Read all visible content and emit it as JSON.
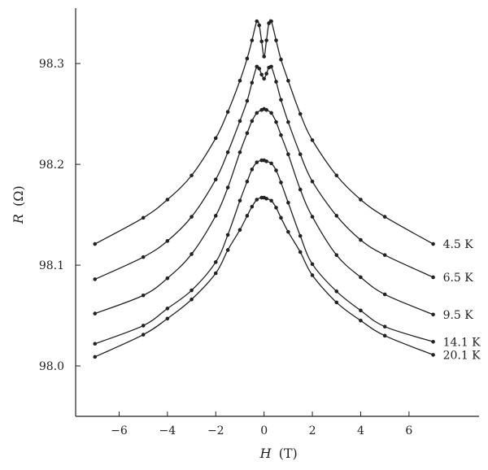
{
  "chart_data": {
    "type": "line",
    "xlabel_var": "H",
    "xlabel_unit": "(T)",
    "ylabel_var": "R",
    "ylabel_unit": "(Ω)",
    "xlim": [
      -7.8,
      8.9
    ],
    "ylim": [
      97.95,
      98.355
    ],
    "xticks": [
      -6,
      -4,
      -2,
      0,
      2,
      4,
      6
    ],
    "xtick_labels": [
      "−6",
      "−4",
      "−2",
      "0",
      "2",
      "4",
      "6"
    ],
    "yticks": [
      98.0,
      98.1,
      98.2,
      98.3
    ],
    "ytick_labels": [
      "98.0",
      "98.1",
      "98.2",
      "98.3"
    ],
    "grid": false,
    "legend": "none",
    "series": [
      {
        "name": "4.5 K",
        "x": [
          -7,
          -5,
          -4,
          -3,
          -2,
          -1.5,
          -1,
          -0.7,
          -0.5,
          -0.3,
          -0.2,
          -0.1,
          0,
          0.1,
          0.2,
          0.3,
          0.5,
          0.7,
          1,
          1.5,
          2,
          3,
          4,
          5,
          7
        ],
        "y": [
          98.121,
          98.147,
          98.165,
          98.189,
          98.226,
          98.252,
          98.283,
          98.305,
          98.323,
          98.342,
          98.338,
          98.322,
          98.307,
          98.323,
          98.34,
          98.342,
          98.323,
          98.304,
          98.283,
          98.25,
          98.224,
          98.189,
          98.165,
          98.148,
          98.121
        ]
      },
      {
        "name": "6.5 K",
        "x": [
          -7,
          -5,
          -4,
          -3,
          -2,
          -1.5,
          -1,
          -0.7,
          -0.5,
          -0.3,
          -0.2,
          -0.1,
          0,
          0.1,
          0.2,
          0.3,
          0.5,
          0.7,
          1,
          1.5,
          2,
          3,
          4,
          5,
          7
        ],
        "y": [
          98.086,
          98.108,
          98.124,
          98.148,
          98.185,
          98.212,
          98.243,
          98.263,
          98.281,
          98.297,
          98.295,
          98.289,
          98.285,
          98.29,
          98.296,
          98.297,
          98.282,
          98.264,
          98.242,
          98.21,
          98.183,
          98.149,
          98.125,
          98.11,
          98.088
        ]
      },
      {
        "name": "9.5 K",
        "x": [
          -7,
          -5,
          -4,
          -3,
          -2,
          -1.5,
          -1,
          -0.7,
          -0.5,
          -0.3,
          -0.1,
          0,
          0.1,
          0.3,
          0.5,
          0.7,
          1,
          1.5,
          2,
          3,
          4,
          5,
          7
        ],
        "y": [
          98.052,
          98.07,
          98.087,
          98.111,
          98.149,
          98.177,
          98.212,
          98.231,
          98.243,
          98.251,
          98.254,
          98.255,
          98.254,
          98.251,
          98.242,
          98.229,
          98.21,
          98.175,
          98.148,
          98.11,
          98.088,
          98.071,
          98.051
        ]
      },
      {
        "name": "14.1 K",
        "x": [
          -7,
          -5,
          -4,
          -3,
          -2,
          -1.5,
          -1,
          -0.7,
          -0.5,
          -0.3,
          -0.1,
          0,
          0.1,
          0.3,
          0.5,
          0.7,
          1,
          1.5,
          2,
          3,
          4,
          5,
          7
        ],
        "y": [
          98.022,
          98.04,
          98.057,
          98.075,
          98.103,
          98.13,
          98.164,
          98.183,
          98.195,
          98.202,
          98.204,
          98.204,
          98.203,
          98.201,
          98.194,
          98.182,
          98.162,
          98.129,
          98.101,
          98.074,
          98.055,
          98.039,
          98.024
        ]
      },
      {
        "name": "20.1 K",
        "x": [
          -7,
          -5,
          -4,
          -3,
          -2,
          -1.5,
          -1,
          -0.7,
          -0.5,
          -0.3,
          -0.1,
          0,
          0.1,
          0.3,
          0.5,
          0.7,
          1,
          1.5,
          2,
          3,
          4,
          5,
          7
        ],
        "y": [
          98.009,
          98.031,
          98.047,
          98.066,
          98.092,
          98.115,
          98.135,
          98.149,
          98.158,
          98.165,
          98.167,
          98.167,
          98.166,
          98.164,
          98.157,
          98.147,
          98.133,
          98.113,
          98.09,
          98.063,
          98.045,
          98.03,
          98.011
        ]
      }
    ]
  }
}
